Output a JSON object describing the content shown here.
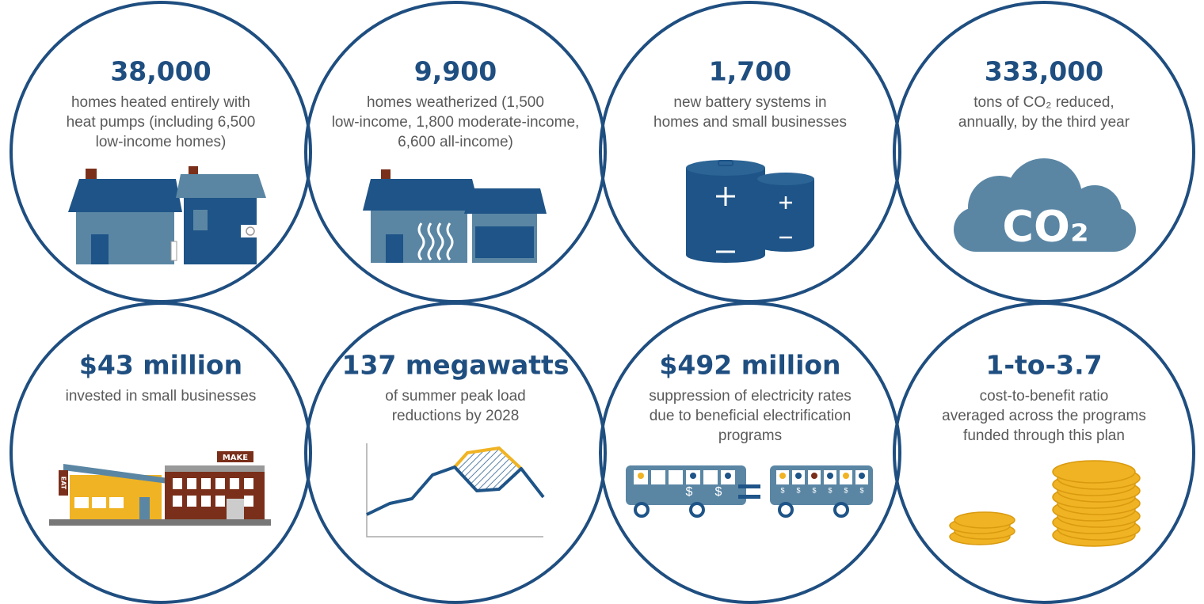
{
  "items": [
    {
      "headline": "38,000",
      "description": [
        "homes heated entirely with",
        "heat pumps (including 6,500",
        "low-income homes)"
      ]
    },
    {
      "headline": "9,900",
      "description": [
        "homes weatherized (1,500",
        "low-income, 1,800 moderate-income,",
        "6,600 all-income)"
      ]
    },
    {
      "headline": "1,700",
      "description": [
        "new battery systems in",
        "homes and small businesses"
      ]
    },
    {
      "headline": "333,000",
      "description": [
        "tons of CO₂ reduced,",
        "annually, by the third year"
      ],
      "icon_label": "CO₂"
    },
    {
      "headline": "$43 million",
      "description": [
        "invested in small businesses"
      ],
      "icon_labels": [
        "EAT",
        "MAKE"
      ]
    },
    {
      "headline": "137 megawatts",
      "description": [
        "of summer peak load",
        "reductions by 2028"
      ]
    },
    {
      "headline": "$492 million",
      "description": [
        "suppression of electricity rates",
        "due to beneficial electrification",
        "programs"
      ],
      "icon_symbol": "$"
    },
    {
      "headline": "1-to-3.7",
      "description": [
        "cost-to-benefit ratio",
        "averaged across the programs",
        "funded through this plan"
      ]
    }
  ]
}
